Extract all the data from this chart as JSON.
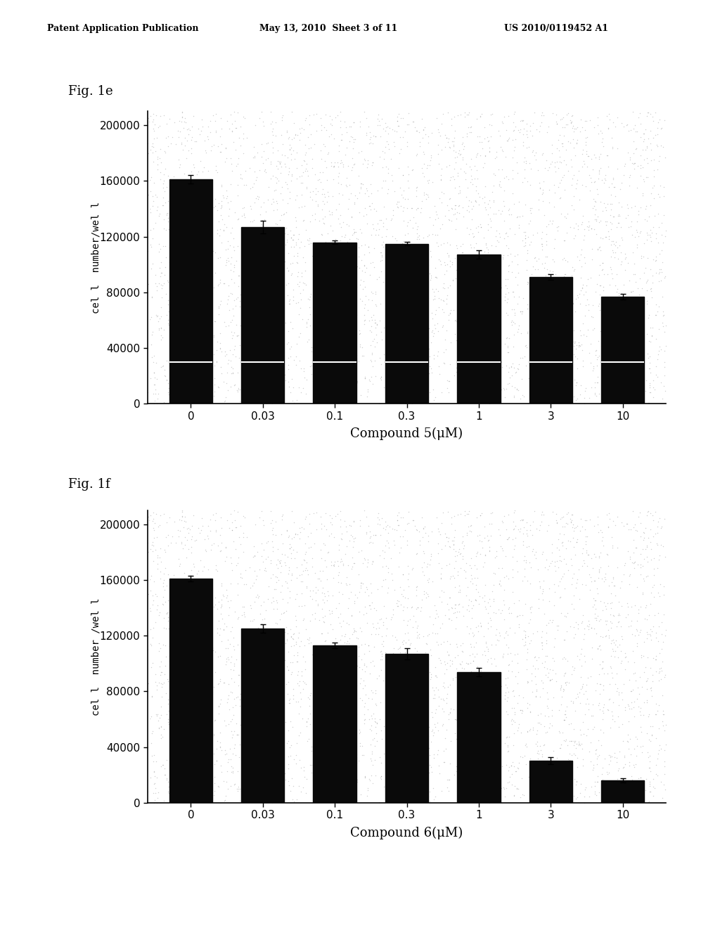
{
  "header_left": "Patent Application Publication",
  "header_mid": "May 13, 2010  Sheet 3 of 11",
  "header_right": "US 2010/0119452 A1",
  "fig1e_label": "Fig. 1e",
  "fig1f_label": "Fig. 1f",
  "categories": [
    "0",
    "0.03",
    "0.1",
    "0.3",
    "1",
    "3",
    "10"
  ],
  "fig1e_values": [
    161000,
    127000,
    116000,
    115000,
    107000,
    91000,
    77000
  ],
  "fig1e_errors": [
    3000,
    4500,
    1500,
    1200,
    3000,
    2000,
    2000
  ],
  "fig1f_values": [
    161000,
    125000,
    113000,
    107000,
    94000,
    30000,
    16000
  ],
  "fig1f_errors": [
    2000,
    3000,
    2000,
    4000,
    3000,
    2500,
    1500
  ],
  "ylabel1": "cel l  number/wel l",
  "ylabel2": "cel l  number /wel l",
  "xlabel1": "Compound 5(μM)",
  "xlabel2": "Compound 6(μM)",
  "ylim": [
    0,
    210000
  ],
  "yticks": [
    0,
    40000,
    80000,
    120000,
    160000,
    200000
  ],
  "bar_color": "#0a0a0a",
  "fig_bg": "#ffffff",
  "hline_y1e": 30000,
  "hline_color": "#ffffff",
  "hline_linewidth": 1.5,
  "dot_density": 0.03,
  "dot_color": "#aaaaaa"
}
